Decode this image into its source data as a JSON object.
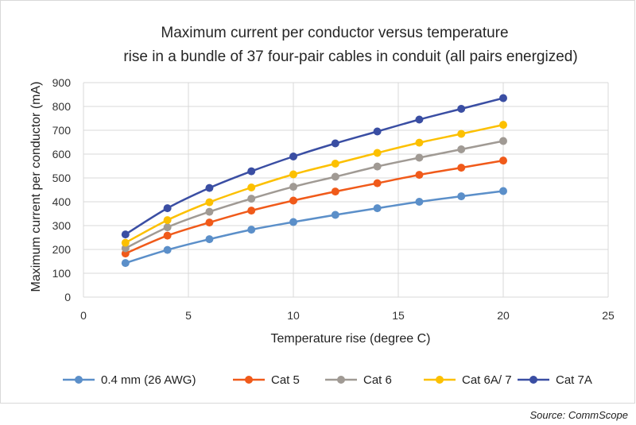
{
  "source_note": "Source: CommScope",
  "chart_data": {
    "type": "line",
    "title_lines": [
      "Maximum current per conductor versus temperature",
      "rise in a bundle of 37 four-pair cables in conduit (all pairs energized)"
    ],
    "xlabel": "Temperature rise (degree C)",
    "ylabel": "Maximum current per conductor (mA)",
    "xlim": [
      0,
      25
    ],
    "ylim": [
      0,
      900
    ],
    "xticks": [
      0,
      5,
      10,
      15,
      20,
      25
    ],
    "yticks": [
      0,
      100,
      200,
      300,
      400,
      500,
      600,
      700,
      800,
      900
    ],
    "grid": true,
    "legend_position": "bottom",
    "x": [
      2,
      4,
      6,
      8,
      10,
      12,
      14,
      16,
      18,
      20
    ],
    "series": [
      {
        "name": "0.4 mm  (26 AWG)",
        "color": "#5b8fc9",
        "values": [
          143,
          198,
          243,
          283,
          315,
          345,
          373,
          400,
          423,
          445
        ]
      },
      {
        "name": "Cat 5",
        "color": "#f05a1a",
        "values": [
          183,
          258,
          313,
          363,
          405,
          443,
          478,
          513,
          543,
          573
        ]
      },
      {
        "name": "Cat 6",
        "color": "#a09a94",
        "values": [
          205,
          293,
          358,
          413,
          463,
          505,
          548,
          585,
          620,
          655
        ]
      },
      {
        "name": "Cat 6A/ 7",
        "color": "#fcc000",
        "values": [
          228,
          323,
          398,
          460,
          515,
          560,
          605,
          648,
          685,
          723
        ]
      },
      {
        "name": "Cat 7A",
        "color": "#3a4ea3",
        "values": [
          263,
          373,
          458,
          528,
          590,
          645,
          695,
          745,
          790,
          835
        ]
      }
    ]
  }
}
